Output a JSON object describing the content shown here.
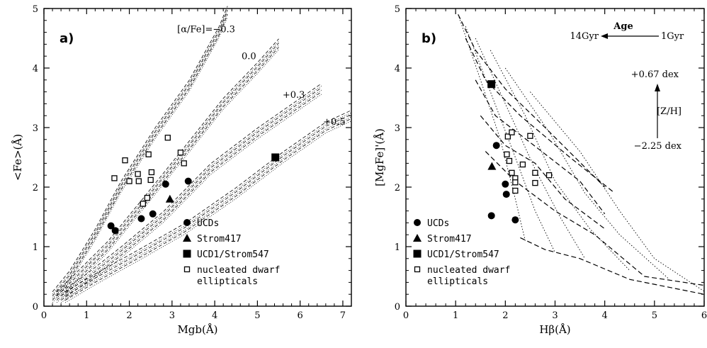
{
  "chart_data": [
    {
      "type": "scatter",
      "panel_label": "a)",
      "xlabel": "Mgb(Å)",
      "ylabel": "<Fe>(Å)",
      "xlim": [
        0,
        7.2
      ],
      "ylim": [
        0,
        5
      ],
      "xticks": [
        "0",
        "1",
        "2",
        "3",
        "4",
        "5",
        "6",
        "7"
      ],
      "yticks": [
        "0",
        "1",
        "2",
        "3",
        "4",
        "5"
      ],
      "grid": false,
      "legend_position": "bottom-right",
      "model_labels": [
        {
          "text": "[α/Fe]=−0.3",
          "x": 3.8,
          "y": 4.6
        },
        {
          "text": "0.0",
          "x": 4.8,
          "y": 4.15
        },
        {
          "text": "+0.3",
          "x": 5.85,
          "y": 3.5
        },
        {
          "text": "+0.5",
          "x": 6.8,
          "y": 3.05
        }
      ],
      "model_tracks": [
        {
          "alpha_fe": "−0.3",
          "points": [
            [
              0.2,
              0.15
            ],
            [
              0.6,
              0.5
            ],
            [
              1.2,
              1.2
            ],
            [
              1.8,
              2.0
            ],
            [
              2.6,
              2.9
            ],
            [
              3.4,
              3.7
            ],
            [
              4.1,
              4.6
            ],
            [
              4.3,
              4.95
            ]
          ]
        },
        {
          "alpha_fe": "0.0",
          "points": [
            [
              0.3,
              0.15
            ],
            [
              0.8,
              0.5
            ],
            [
              1.5,
              1.0
            ],
            [
              2.3,
              1.7
            ],
            [
              3.2,
              2.5
            ],
            [
              4.2,
              3.4
            ],
            [
              5.0,
              4.0
            ],
            [
              5.5,
              4.4
            ]
          ]
        },
        {
          "alpha_fe": "+0.3",
          "points": [
            [
              0.4,
              0.15
            ],
            [
              1.0,
              0.45
            ],
            [
              1.8,
              0.9
            ],
            [
              2.8,
              1.5
            ],
            [
              3.9,
              2.3
            ],
            [
              5.0,
              2.9
            ],
            [
              6.0,
              3.4
            ],
            [
              6.5,
              3.65
            ]
          ]
        },
        {
          "alpha_fe": "+0.5",
          "points": [
            [
              0.5,
              0.15
            ],
            [
              1.2,
              0.45
            ],
            [
              2.2,
              0.85
            ],
            [
              3.3,
              1.3
            ],
            [
              4.5,
              1.9
            ],
            [
              5.6,
              2.5
            ],
            [
              6.6,
              3.0
            ],
            [
              7.2,
              3.2
            ]
          ]
        }
      ],
      "series": [
        {
          "name": "UCDs",
          "marker": "filled-circle",
          "points": [
            [
              1.57,
              1.35
            ],
            [
              1.67,
              1.27
            ],
            [
              2.28,
              1.47
            ],
            [
              2.55,
              1.55
            ],
            [
              2.85,
              2.05
            ],
            [
              3.38,
              2.1
            ]
          ]
        },
        {
          "name": "Strom417",
          "marker": "filled-triangle",
          "points": [
            [
              2.95,
              1.8
            ]
          ]
        },
        {
          "name": "UCD1/Strom547",
          "marker": "filled-square",
          "points": [
            [
              5.42,
              2.5
            ]
          ]
        },
        {
          "name": "nucleated dwarf ellipticals",
          "marker": "open-square",
          "points": [
            [
              1.65,
              2.15
            ],
            [
              1.9,
              2.45
            ],
            [
              2.0,
              2.1
            ],
            [
              2.2,
              2.22
            ],
            [
              2.22,
              2.1
            ],
            [
              2.45,
              2.55
            ],
            [
              2.52,
              2.25
            ],
            [
              2.5,
              2.12
            ],
            [
              2.32,
              1.72
            ],
            [
              2.42,
              1.82
            ],
            [
              2.9,
              2.83
            ],
            [
              3.2,
              2.58
            ],
            [
              3.28,
              2.4
            ]
          ]
        }
      ],
      "legend": [
        "UCDs",
        "Strom417",
        "UCD1/Strom547",
        "nucleated dwarf",
        "ellipticals"
      ]
    },
    {
      "type": "scatter",
      "panel_label": "b)",
      "xlabel": "Hβ(Å)",
      "ylabel": "[MgFe]'(Å)",
      "xlim": [
        0,
        6
      ],
      "ylim": [
        0,
        5
      ],
      "xticks": [
        "0",
        "1",
        "2",
        "3",
        "4",
        "5",
        "6"
      ],
      "yticks": [
        "0",
        "1",
        "2",
        "3",
        "4",
        "5"
      ],
      "grid": false,
      "legend_position": "bottom-left",
      "annotations": {
        "age_label": "Age",
        "age_old": "14Gyr",
        "age_young": "1Gyr",
        "z_high": "+0.67 dex",
        "z_label": "[Z/H]",
        "z_low": "−2.25 dex"
      },
      "grid_lines": [
        {
          "kind": "metallicity",
          "points": [
            [
              1.05,
              4.9
            ],
            [
              1.4,
              4.3
            ],
            [
              2.0,
              3.65
            ],
            [
              2.8,
              3.0
            ],
            [
              4.0,
              2.0
            ]
          ]
        },
        {
          "kind": "metallicity",
          "points": [
            [
              1.2,
              4.5
            ],
            [
              1.6,
              3.8
            ],
            [
              2.3,
              3.2
            ],
            [
              3.3,
              2.5
            ],
            [
              4.2,
              1.9
            ]
          ]
        },
        {
          "kind": "metallicity",
          "points": [
            [
              1.4,
              3.8
            ],
            [
              1.8,
              3.2
            ],
            [
              2.5,
              2.75
            ],
            [
              3.5,
              2.1
            ],
            [
              4.0,
              1.55
            ]
          ]
        },
        {
          "kind": "metallicity",
          "points": [
            [
              1.5,
              3.2
            ],
            [
              2.0,
              2.7
            ],
            [
              2.6,
              2.4
            ],
            [
              3.2,
              1.8
            ],
            [
              4.0,
              1.3
            ]
          ]
        },
        {
          "kind": "metallicity",
          "points": [
            [
              1.6,
              2.6
            ],
            [
              2.2,
              2.1
            ],
            [
              3.0,
              1.6
            ],
            [
              3.8,
              1.2
            ],
            [
              4.8,
              0.5
            ],
            [
              6.0,
              0.35
            ]
          ]
        },
        {
          "kind": "metallicity",
          "points": [
            [
              2.3,
              1.15
            ],
            [
              2.8,
              0.95
            ],
            [
              3.5,
              0.8
            ],
            [
              4.5,
              0.45
            ],
            [
              6.0,
              0.2
            ]
          ]
        },
        {
          "kind": "age",
          "points": [
            [
              1.05,
              4.9
            ],
            [
              1.5,
              3.8
            ],
            [
              1.9,
              2.8
            ],
            [
              2.2,
              1.8
            ],
            [
              2.4,
              1.1
            ]
          ]
        },
        {
          "kind": "age",
          "points": [
            [
              1.2,
              4.7
            ],
            [
              1.7,
              3.6
            ],
            [
              2.2,
              2.5
            ],
            [
              2.6,
              1.6
            ],
            [
              3.0,
              0.9
            ]
          ]
        },
        {
          "kind": "age",
          "points": [
            [
              1.4,
              4.5
            ],
            [
              2.0,
              3.4
            ],
            [
              2.6,
              2.3
            ],
            [
              3.1,
              1.5
            ],
            [
              3.6,
              0.8
            ]
          ]
        },
        {
          "kind": "age",
          "points": [
            [
              1.7,
              4.3
            ],
            [
              2.4,
              3.2
            ],
            [
              3.0,
              2.1
            ],
            [
              3.7,
              1.3
            ],
            [
              4.5,
              0.6
            ]
          ]
        },
        {
          "kind": "age",
          "points": [
            [
              2.0,
              4.0
            ],
            [
              2.9,
              2.9
            ],
            [
              3.6,
              1.9
            ],
            [
              4.3,
              1.2
            ],
            [
              5.3,
              0.45
            ]
          ]
        },
        {
          "kind": "age",
          "points": [
            [
              2.5,
              3.6
            ],
            [
              3.5,
              2.6
            ],
            [
              4.3,
              1.6
            ],
            [
              5.0,
              0.8
            ],
            [
              6.0,
              0.25
            ]
          ]
        }
      ],
      "series": [
        {
          "name": "UCDs",
          "marker": "filled-circle",
          "points": [
            [
              1.82,
              2.7
            ],
            [
              2.0,
              2.05
            ],
            [
              2.02,
              1.88
            ],
            [
              1.72,
              1.52
            ],
            [
              2.2,
              1.45
            ]
          ]
        },
        {
          "name": "Strom417",
          "marker": "filled-triangle",
          "points": [
            [
              1.73,
              2.35
            ]
          ]
        },
        {
          "name": "UCD1/Strom547",
          "marker": "filled-square",
          "points": [
            [
              1.72,
              3.73
            ]
          ]
        },
        {
          "name": "nucleated dwarf ellipticals",
          "marker": "open-square",
          "points": [
            [
              2.05,
              2.85
            ],
            [
              2.13,
              2.92
            ],
            [
              2.5,
              2.86
            ],
            [
              2.03,
              2.55
            ],
            [
              2.08,
              2.44
            ],
            [
              2.13,
              2.24
            ],
            [
              2.2,
              2.15
            ],
            [
              2.2,
              2.08
            ],
            [
              2.2,
              1.94
            ],
            [
              2.35,
              2.38
            ],
            [
              2.6,
              2.24
            ],
            [
              2.6,
              2.07
            ],
            [
              2.88,
              2.2
            ]
          ]
        }
      ],
      "legend": [
        "UCDs",
        "Strom417",
        "UCD1/Strom547",
        "nucleated dwarf",
        "ellipticals"
      ]
    }
  ]
}
